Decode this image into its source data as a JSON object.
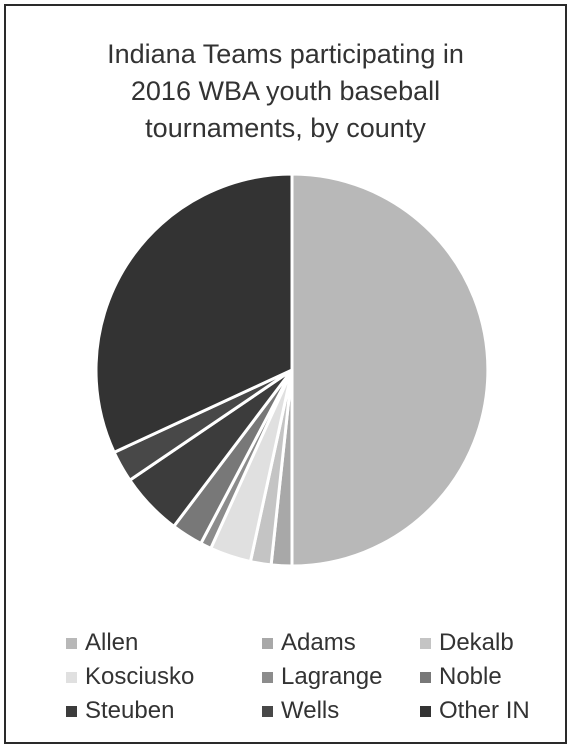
{
  "chart_data": {
    "type": "pie",
    "title_lines": [
      "Indiana Teams participating in",
      "2016 WBA youth baseball",
      "tournaments, by county"
    ],
    "legend_placement": "bottom",
    "slices": [
      {
        "name": "Allen",
        "value": 50.0,
        "color": "#b8b8b8"
      },
      {
        "name": "Adams",
        "value": 1.7,
        "color": "#a8a8a8"
      },
      {
        "name": "Dekalb",
        "value": 1.7,
        "color": "#c4c4c4"
      },
      {
        "name": "Kosciusko",
        "value": 3.4,
        "color": "#e0e0e0"
      },
      {
        "name": "Lagrange",
        "value": 0.9,
        "color": "#8c8c8c"
      },
      {
        "name": "Noble",
        "value": 2.6,
        "color": "#787878"
      },
      {
        "name": "Steuben",
        "value": 5.2,
        "color": "#3c3c3c"
      },
      {
        "name": "Wells",
        "value": 2.6,
        "color": "#484848"
      },
      {
        "name": "Other IN",
        "value": 31.9,
        "color": "#333333"
      }
    ]
  }
}
